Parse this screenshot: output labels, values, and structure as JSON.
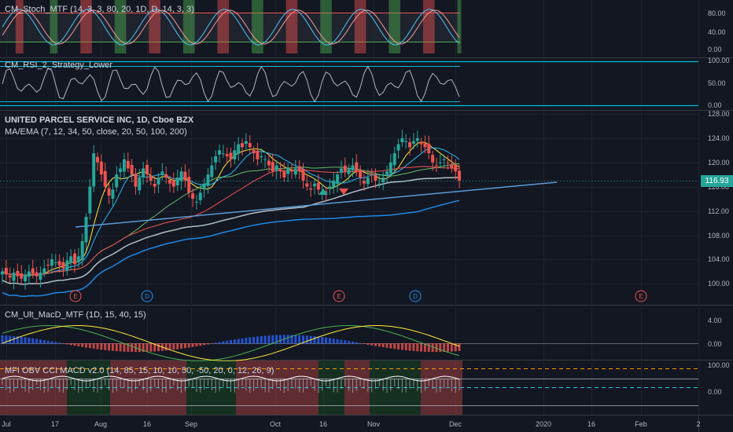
{
  "panes": {
    "stoch": {
      "label": "CM_Stoch_MTF (14, 3, 3, 80, 20, 1D, D, 14, 3, 3)",
      "ticks": [
        "80.00",
        "40.00",
        "0.00"
      ]
    },
    "rsi": {
      "label": "CM_RSI_2_Strategy_Lower",
      "ticks": [
        "100.00",
        "50.00",
        "0.00"
      ]
    },
    "main": {
      "title": "UNITED PARCEL SERVICE INC, 1D, Cboe BZX",
      "ma_label": "MA/EMA (7, 12, 34, 50, close, 20, 50, 100, 200)",
      "ticks": [
        "128.00",
        "124.00",
        "120.00",
        "116.00",
        "112.00",
        "108.00",
        "104.00",
        "100.00"
      ],
      "last_price": "116.93",
      "events": [
        {
          "text": "E",
          "type": "earnings"
        },
        {
          "text": "D",
          "type": "dividend"
        },
        {
          "text": "E",
          "type": "earnings"
        },
        {
          "text": "D",
          "type": "dividend"
        },
        {
          "text": "E",
          "type": "earnings"
        }
      ]
    },
    "macd": {
      "label": "CM_Ult_MacD_MTF (1D, 15, 40, 15)",
      "ticks": [
        "4.00",
        "0.00"
      ]
    },
    "mfi": {
      "label": "MFI OBV CCI MACD v2.0 (14, 85, 15, 10, 10, 50, -50, 20, 0, 12, 26, 9)",
      "ticks": [
        "100.00",
        "0.00"
      ]
    }
  },
  "time_axis": [
    "Jul",
    "17",
    "Aug",
    "16",
    "Sep",
    "Oct",
    "16",
    "Nov",
    "Dec",
    "2020",
    "16",
    "Feb",
    "2"
  ],
  "colors": {
    "bg": "#131722",
    "up": "#26a69a",
    "down": "#ef5350",
    "grid": "#2a2e39"
  },
  "chart_data": {
    "type": "candlestick",
    "title": "UNITED PARCEL SERVICE INC, 1D, Cboe BZX",
    "y_range": [
      98,
      128
    ],
    "ohlc_close_approx": [
      102,
      101.5,
      101,
      101.8,
      101.2,
      100.8,
      101.5,
      102,
      101.6,
      101.2,
      101.8,
      102.5,
      103,
      104,
      103.5,
      103,
      102.5,
      103.8,
      104.5,
      103.2,
      104.5,
      107,
      111,
      116,
      121.5,
      120,
      118,
      116,
      114.5,
      115.5,
      118,
      119,
      120.5,
      119,
      118,
      116,
      117.5,
      119,
      118,
      117,
      116,
      117.5,
      118.5,
      117.5,
      116.5,
      116,
      117.5,
      118.5,
      117,
      115,
      114,
      113.5,
      115,
      116.5,
      118,
      119.5,
      121,
      122,
      121.5,
      121,
      120.5,
      122,
      123,
      122.5,
      123.5,
      122.5,
      121.5,
      120.5,
      121,
      120.5,
      119.5,
      118.5,
      119.5,
      118.5,
      117.5,
      119,
      118.5,
      119,
      118.5,
      117,
      116,
      115.5,
      116.5,
      115.5,
      115.2,
      115,
      116,
      117,
      118,
      119,
      118.5,
      119,
      119.5,
      118.5,
      117.5,
      116.5,
      117.5,
      118,
      117,
      116.5,
      117.5,
      118.5,
      120,
      121.5,
      123,
      124,
      123.5,
      122.5,
      123.5,
      124,
      123,
      122.5,
      121.5,
      120,
      119.5,
      120,
      120.5,
      120,
      119,
      118.5,
      117
    ],
    "last_price": 116.93
  }
}
